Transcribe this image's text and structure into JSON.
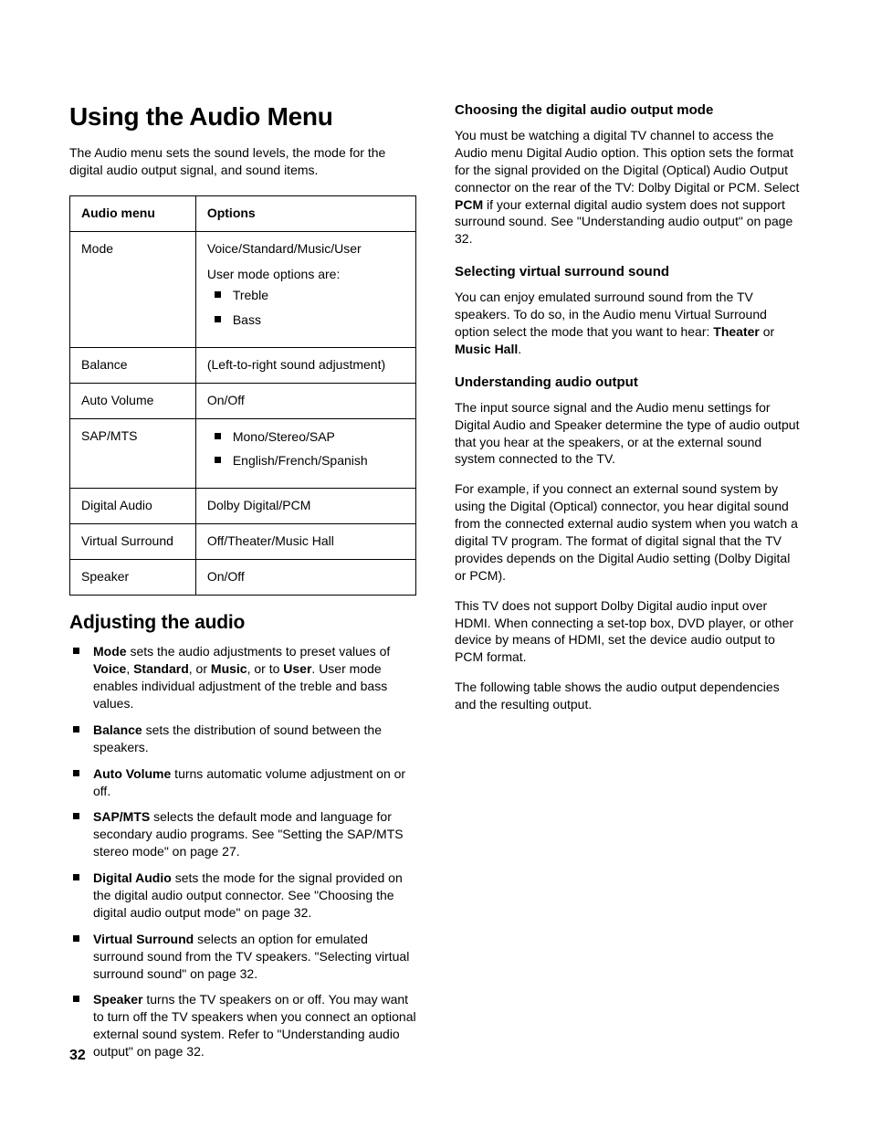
{
  "page_number": "32",
  "left": {
    "h1": "Using the Audio Menu",
    "intro": "The Audio menu sets the sound levels, the mode for the digital audio output signal, and sound items.",
    "table": {
      "col1": "Audio menu",
      "col2": "Options",
      "rows": {
        "mode": {
          "name": "Mode",
          "line1": "Voice/Standard/Music/User",
          "line2": "User mode options are:",
          "b1": "Treble",
          "b2": "Bass"
        },
        "balance": {
          "name": "Balance",
          "opt": "(Left-to-right sound adjustment)"
        },
        "auto_volume": {
          "name": "Auto Volume",
          "opt": "On/Off"
        },
        "sap": {
          "name": "SAP/MTS",
          "b1": "Mono/Stereo/SAP",
          "b2": "English/French/Spanish"
        },
        "digital_audio": {
          "name": "Digital Audio",
          "opt": "Dolby Digital/PCM"
        },
        "virtual_surround": {
          "name": "Virtual Surround",
          "opt": "Off/Theater/Music Hall"
        },
        "speaker": {
          "name": "Speaker",
          "opt": "On/Off"
        }
      }
    },
    "h2": "Adjusting the audio",
    "items": {
      "mode": {
        "t1": "Mode",
        "t2": " sets the audio adjustments to preset values of ",
        "t3": "Voice",
        "t4": ", ",
        "t5": "Standard",
        "t6": ", or ",
        "t7": "Music",
        "t8": ", or to ",
        "t9": "User",
        "t10": ". User mode enables individual adjustment of the treble and bass values."
      },
      "balance": {
        "t1": "Balance",
        "t2": " sets the distribution of sound between the speakers."
      },
      "auto_volume": {
        "t1": "Auto Volume",
        "t2": " turns automatic volume adjustment on or off."
      },
      "sap": {
        "t1": "SAP/MTS",
        "t2": " selects the default mode and language for secondary audio programs. See \"Setting the SAP/MTS stereo mode\" on page 27."
      },
      "digital_audio": {
        "t1": "Digital Audio",
        "t2": " sets the mode for the signal provided on the digital audio output connector. See \"Choosing the digital audio output mode\" on page 32."
      },
      "virtual_surround": {
        "t1": "Virtual Surround",
        "t2": " selects an option for emulated surround sound from the TV speakers. \"Selecting virtual surround sound\" on page 32."
      },
      "speaker": {
        "t1": "Speaker",
        "t2": " turns the TV speakers on or off. You may want to turn off the TV speakers when you connect an optional external sound system. Refer to \"Understanding audio output\" on page 32."
      }
    }
  },
  "right": {
    "s1": {
      "h": "Choosing the digital audio output mode",
      "p1a": "You must be watching a digital TV channel to access the Audio menu Digital Audio option. This option sets the format for the signal provided on the Digital (Optical) Audio Output connector on the rear of the TV: Dolby Digital or PCM. Select ",
      "p1b": "PCM",
      "p1c": " if your external digital audio system does not support surround sound. See \"Understanding audio output\" on page 32."
    },
    "s2": {
      "h": "Selecting virtual surround sound",
      "p1a": "You can enjoy emulated surround sound from the TV speakers. To do so, in the Audio menu Virtual Surround option select the mode that you want to hear: ",
      "p1b": "Theater",
      "p1c": " or ",
      "p1d": "Music Hall",
      "p1e": "."
    },
    "s3": {
      "h": "Understanding audio output",
      "p1": "The input source signal and the Audio menu settings for Digital Audio and Speaker determine the type of audio output that you hear at the speakers, or at the external sound system connected to the TV.",
      "p2": "For example, if you connect an external sound system by using the Digital (Optical) connector, you hear digital sound from the connected external audio system when you watch a digital TV program. The format of digital signal that the TV provides depends on the Digital Audio setting (Dolby Digital or PCM).",
      "p3": "This TV does not support Dolby Digital audio input over HDMI. When connecting a set-top box, DVD player, or other device by means of HDMI, set the device audio output to PCM format.",
      "p4": "The following table shows the audio output dependencies and the resulting output."
    }
  }
}
